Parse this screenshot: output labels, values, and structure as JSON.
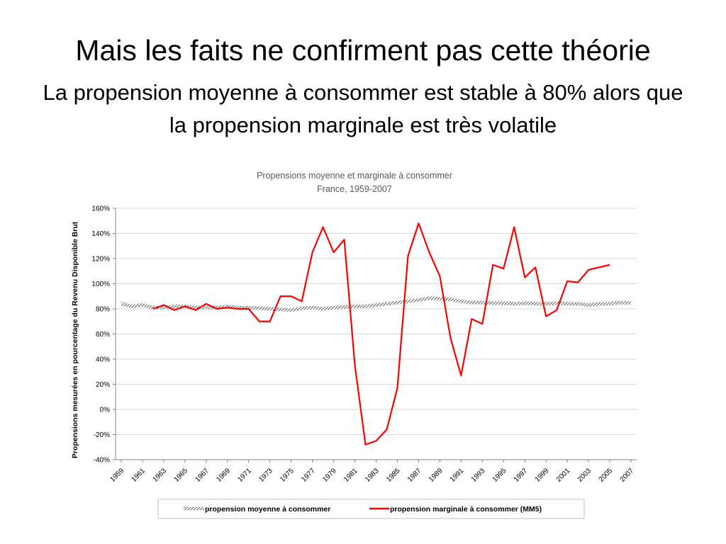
{
  "slide": {
    "title": "Mais les faits ne confirment pas cette théorie",
    "subtitle": "La propension moyenne à consommer est stable à 80% alors que la propension marginale est très volatile"
  },
  "chart_data": {
    "type": "line",
    "title": "Propensions moyenne et marginale à consommer",
    "subtitle": "France, 1959-2007",
    "xlabel": "",
    "ylabel": "Propensions mesurées en pourcentage du Revenu Disponible Brut",
    "ylim": [
      -40,
      160
    ],
    "yticks": [
      -40,
      -20,
      0,
      20,
      40,
      60,
      80,
      100,
      120,
      140,
      160
    ],
    "ytick_labels": [
      "-40%",
      "-20%",
      "0%",
      "20%",
      "40%",
      "60%",
      "80%",
      "100%",
      "120%",
      "140%",
      "160%"
    ],
    "xlim": [
      1959,
      2007
    ],
    "xtick_labels": [
      "1959",
      "1961",
      "1963",
      "1965",
      "1967",
      "1969",
      "1971",
      "1973",
      "1975",
      "1977",
      "1979",
      "1981",
      "1983",
      "1985",
      "1987",
      "1989",
      "1991",
      "1993",
      "1995",
      "1997",
      "1999",
      "2001",
      "2003",
      "2005",
      "2007"
    ],
    "grid": "horizontal",
    "legend_position": "bottom",
    "series": [
      {
        "name": "propension moyenne à consommer",
        "color": "#404040",
        "style": "hatched",
        "x": [
          1959,
          1960,
          1961,
          1962,
          1963,
          1964,
          1965,
          1966,
          1967,
          1968,
          1969,
          1970,
          1971,
          1972,
          1973,
          1974,
          1975,
          1976,
          1977,
          1978,
          1979,
          1980,
          1981,
          1982,
          1983,
          1984,
          1985,
          1986,
          1987,
          1988,
          1989,
          1990,
          1991,
          1992,
          1993,
          1994,
          1995,
          1996,
          1997,
          1998,
          1999,
          2000,
          2001,
          2002,
          2003,
          2004,
          2005,
          2006,
          2007
        ],
        "values": [
          84,
          82,
          83,
          81,
          81,
          82,
          82,
          81,
          81,
          81,
          82,
          81,
          81,
          80.5,
          80,
          79.5,
          79,
          80.5,
          81,
          80,
          81,
          81.5,
          82,
          82,
          83,
          84,
          85,
          86,
          87,
          88.5,
          88,
          87.5,
          86,
          85,
          85,
          84.5,
          84.5,
          84,
          84.5,
          84,
          84,
          84.5,
          84,
          84,
          83,
          84,
          84,
          85,
          84.5
        ]
      },
      {
        "name": "propension marginale à consommer (MM5)",
        "color": "#ff0000",
        "x": [
          1962,
          1963,
          1964,
          1965,
          1966,
          1967,
          1968,
          1969,
          1970,
          1971,
          1972,
          1973,
          1974,
          1975,
          1976,
          1977,
          1978,
          1979,
          1980,
          1981,
          1982,
          1983,
          1984,
          1985,
          1986,
          1987,
          1988,
          1989,
          1990,
          1991,
          1992,
          1993,
          1994,
          1995,
          1996,
          1997,
          1998,
          1999,
          2000,
          2001,
          2002,
          2003,
          2004,
          2005
        ],
        "values": [
          80,
          83,
          79,
          82,
          79,
          84,
          80,
          81,
          80,
          80,
          70,
          70,
          90,
          90,
          86,
          125,
          145,
          125,
          135,
          35,
          -28,
          -25,
          -16,
          17,
          122,
          148,
          125,
          106,
          57,
          27,
          72,
          68,
          115,
          112,
          145,
          105,
          113,
          74,
          79,
          102,
          101,
          111,
          113,
          115
        ]
      }
    ]
  }
}
